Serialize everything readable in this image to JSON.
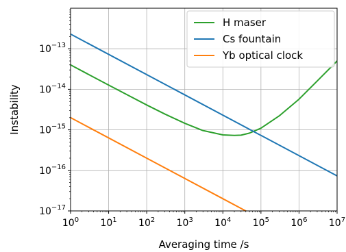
{
  "chart_data": {
    "type": "line",
    "xlabel": "Averaging time /s",
    "ylabel": "Instability",
    "xscale": "log",
    "yscale": "log",
    "xlim": [
      1,
      10000000
    ],
    "ylim": [
      1e-17,
      1e-12
    ],
    "grid": true,
    "legend_position": "top-right",
    "x_ticks": [
      {
        "value": 1,
        "base": "10",
        "exp": "0"
      },
      {
        "value": 10,
        "base": "10",
        "exp": "1"
      },
      {
        "value": 100,
        "base": "10",
        "exp": "2"
      },
      {
        "value": 1000,
        "base": "10",
        "exp": "3"
      },
      {
        "value": 10000,
        "base": "10",
        "exp": "4"
      },
      {
        "value": 100000,
        "base": "10",
        "exp": "5"
      },
      {
        "value": 1000000,
        "base": "10",
        "exp": "6"
      },
      {
        "value": 10000000,
        "base": "10",
        "exp": "7"
      }
    ],
    "y_ticks": [
      {
        "value": 1e-17,
        "base": "10",
        "exp": "−17"
      },
      {
        "value": 1e-16,
        "base": "10",
        "exp": "−16"
      },
      {
        "value": 1e-15,
        "base": "10",
        "exp": "−15"
      },
      {
        "value": 1e-14,
        "base": "10",
        "exp": "−14"
      },
      {
        "value": 1e-13,
        "base": "10",
        "exp": "−13"
      }
    ],
    "series": [
      {
        "name": "H maser",
        "color": "#2ca02c",
        "x": [
          1,
          3,
          10,
          30,
          100,
          300,
          1000,
          3000,
          10000,
          20000,
          30000,
          50000,
          100000,
          300000,
          1000000,
          3000000,
          10000000
        ],
        "y": [
          4e-14,
          2.31e-14,
          1.27e-14,
          7.4e-15,
          4.1e-15,
          2.45e-15,
          1.45e-15,
          9.6e-16,
          7.5e-16,
          7.3e-16,
          7.4e-16,
          8.3e-16,
          1.1e-15,
          2.2e-15,
          5.7e-15,
          1.6e-14,
          5e-14
        ]
      },
      {
        "name": "Cs fountain",
        "color": "#1f77b4",
        "x": [
          1,
          10000000
        ],
        "y": [
          2.3e-13,
          7.3e-17
        ]
      },
      {
        "name": "Yb optical clock",
        "color": "#ff7f0e",
        "x": [
          1,
          100,
          10000,
          40000
        ],
        "y": [
          2e-15,
          2e-16,
          2e-17,
          1e-17
        ]
      }
    ]
  }
}
